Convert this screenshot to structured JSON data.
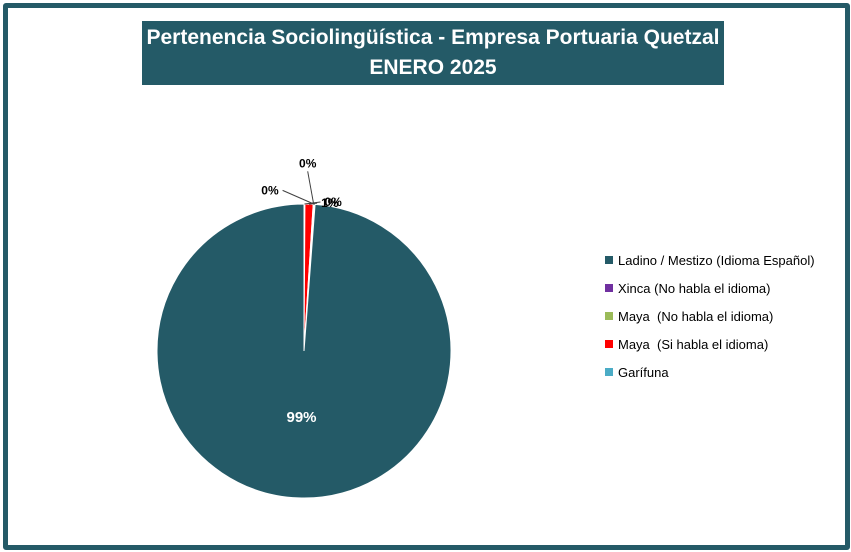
{
  "chart_data": {
    "type": "pie",
    "title": "Pertenencia Sociolingüística - Empresa Portuaria Quetzal",
    "subtitle": "ENERO 2025",
    "categories": [
      "Ladino / Mestizo (Idioma Español)",
      "Xinca (No habla el idioma)",
      "Maya  (No habla el idioma)",
      "Maya  (Si habla el idioma)",
      "Garífuna"
    ],
    "values": [
      0.988,
      0.001,
      0.001,
      0.009,
      0.001
    ],
    "data_labels": [
      "99%",
      "0%",
      "0%",
      "1%",
      "0%"
    ],
    "colors": [
      "#245a67",
      "#7030a0",
      "#9bbb59",
      "#ff0000",
      "#4bacc6"
    ],
    "legend_position": "right"
  }
}
